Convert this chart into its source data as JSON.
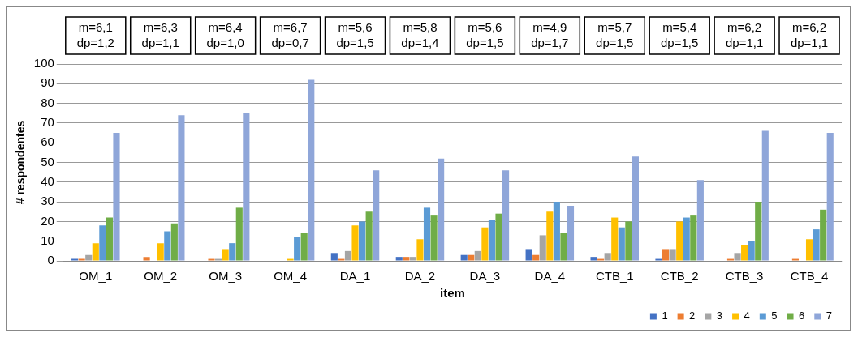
{
  "chart_data": {
    "type": "bar",
    "xlabel": "item",
    "ylabel": "# respondentes",
    "categories": [
      "OM_1",
      "OM_2",
      "OM_3",
      "OM_4",
      "DA_1",
      "DA_2",
      "DA_3",
      "DA_4",
      "CTB_1",
      "CTB_2",
      "CTB_3",
      "CTB_4"
    ],
    "series": [
      {
        "name": "1",
        "color": "#4472c4",
        "values": [
          1,
          0,
          0,
          0,
          4,
          2,
          3,
          6,
          2,
          1,
          0,
          0
        ]
      },
      {
        "name": "2",
        "color": "#ed7d31",
        "values": [
          1,
          2,
          1,
          0,
          1,
          2,
          3,
          3,
          1,
          6,
          1,
          1
        ]
      },
      {
        "name": "3",
        "color": "#a5a5a5",
        "values": [
          3,
          0,
          1,
          0,
          5,
          2,
          5,
          13,
          4,
          6,
          4,
          0
        ]
      },
      {
        "name": "4",
        "color": "#ffc000",
        "values": [
          9,
          9,
          6,
          1,
          18,
          11,
          17,
          25,
          22,
          20,
          8,
          11
        ]
      },
      {
        "name": "5",
        "color": "#5b9bd5",
        "values": [
          18,
          15,
          9,
          12,
          20,
          27,
          21,
          30,
          17,
          22,
          10,
          16
        ]
      },
      {
        "name": "6",
        "color": "#70ad47",
        "values": [
          22,
          19,
          27,
          14,
          25,
          23,
          24,
          14,
          20,
          23,
          30,
          26
        ]
      },
      {
        "name": "7",
        "color": "#8fa6d9",
        "values": [
          65,
          74,
          75,
          92,
          46,
          52,
          46,
          28,
          53,
          41,
          66,
          65
        ]
      }
    ],
    "ylim": [
      0,
      100
    ],
    "yticks": [
      0,
      10,
      20,
      30,
      40,
      50,
      60,
      70,
      80,
      90,
      100
    ],
    "grid": "y",
    "legend": "bottom right",
    "annotations": [
      "m=6,1\ndp=1,2",
      "m=6,3\ndp=1,1",
      "m=6,4\ndp=1,0",
      "m=6,7\ndp=0,7",
      "m=5,6\ndp=1,5",
      "m=5,8\ndp=1,4",
      "m=5,6\ndp=1,5",
      "m=4,9\ndp=1,7",
      "m=5,7\ndp=1,5",
      "m=5,4\ndp=1,5",
      "m=6,2\ndp=1,1",
      "m=6,2\ndp=1,1"
    ]
  }
}
